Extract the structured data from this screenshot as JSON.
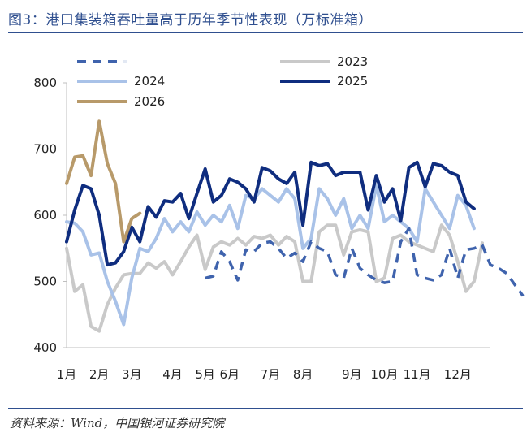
{
  "title": "图3：港口集装箱吞吐量高于历年季节性表现（万标准箱）",
  "source": "资料来源：Wind，中国银河证券研究院",
  "chart_data": {
    "type": "line",
    "title": "图3：港口集装箱吞吐量高于历年季节性表现（万标准箱）",
    "xlabel": "",
    "ylabel": "",
    "ylim": [
      400,
      800
    ],
    "yticks": [
      400,
      500,
      600,
      700,
      800
    ],
    "x_labels": [
      "1月",
      "2月",
      "3月",
      "4月",
      "5月",
      "6月",
      "7月",
      "8月",
      "9月",
      "10月",
      "11月",
      "12月"
    ],
    "x_label_weeks": [
      0,
      4,
      8,
      13,
      17,
      20,
      25,
      29,
      35,
      39,
      43,
      48
    ],
    "n_weeks": 53,
    "legend_position": "top",
    "series": [
      {
        "name": "",
        "style": "dashed",
        "color": "#3f63ad",
        "start_week": 17,
        "values": [
          505,
          508,
          545,
          530,
          502,
          548,
          545,
          558,
          560,
          550,
          535,
          543,
          530,
          560,
          550,
          545,
          510,
          505,
          550,
          520,
          510,
          502,
          498,
          500,
          560,
          580,
          510,
          505,
          502,
          510,
          550,
          505,
          548,
          550,
          555,
          525,
          520,
          512,
          495,
          478
        ]
      },
      {
        "name": "2023",
        "style": "solid",
        "color": "#c9c9c9",
        "start_week": 0,
        "values": [
          550,
          485,
          495,
          432,
          425,
          465,
          490,
          510,
          512,
          512,
          528,
          520,
          530,
          510,
          530,
          552,
          570,
          518,
          552,
          560,
          555,
          565,
          555,
          568,
          565,
          570,
          555,
          568,
          560,
          500,
          500,
          575,
          585,
          585,
          540,
          575,
          578,
          575,
          500,
          505,
          565,
          570,
          560,
          555,
          550,
          545,
          585,
          570,
          530,
          485,
          500,
          558
        ]
      },
      {
        "name": "2024",
        "style": "solid",
        "color": "#a9c2e8",
        "start_week": 0,
        "values": [
          590,
          588,
          575,
          540,
          543,
          500,
          470,
          435,
          505,
          550,
          545,
          565,
          595,
          575,
          590,
          575,
          605,
          585,
          600,
          590,
          615,
          580,
          630,
          625,
          640,
          630,
          620,
          640,
          625,
          550,
          565,
          640,
          625,
          600,
          625,
          580,
          600,
          580,
          645,
          590,
          600,
          590,
          580,
          560,
          640,
          620,
          600,
          580,
          630,
          615,
          580
        ]
      },
      {
        "name": "2025",
        "style": "solid",
        "color": "#0f2d7f",
        "start_week": 0,
        "values": [
          560,
          608,
          645,
          640,
          600,
          525,
          528,
          545,
          582,
          560,
          613,
          597,
          622,
          620,
          633,
          595,
          633,
          670,
          620,
          630,
          655,
          650,
          640,
          620,
          672,
          667,
          655,
          648,
          665,
          585,
          680,
          675,
          678,
          660,
          665,
          665,
          665,
          608,
          660,
          620,
          640,
          592,
          672,
          680,
          643,
          678,
          675,
          665,
          660,
          620,
          610
        ]
      },
      {
        "name": "2026",
        "style": "solid",
        "color": "#b89a6a",
        "start_week": 0,
        "values": [
          648,
          688,
          690,
          660,
          742,
          678,
          648,
          560,
          595,
          603
        ]
      }
    ]
  }
}
